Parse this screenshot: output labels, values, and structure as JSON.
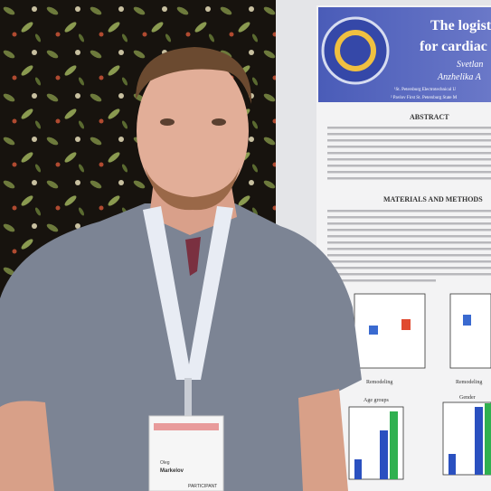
{
  "poster": {
    "title_line1": "The logist",
    "title_line2": "for cardiac r",
    "authors_line1": "Svetlan",
    "authors_line2": "Anzhelika A",
    "affiliation1": "¹St. Petersburg Electrotechnical U",
    "affiliation2": "² Pavlov First St. Petersburg State M",
    "section1": "ABSTRACT",
    "section2": "MATERIALS AND METHODS",
    "chart1_xlabel": "Remodeling",
    "chart2_xlabel": "Remodeling",
    "chart3_title": "Age groups",
    "chart4_title": "Gender"
  },
  "badge": {
    "first_name": "Oleg",
    "last_name": "Markelov",
    "role": "PARTICIPANT"
  }
}
